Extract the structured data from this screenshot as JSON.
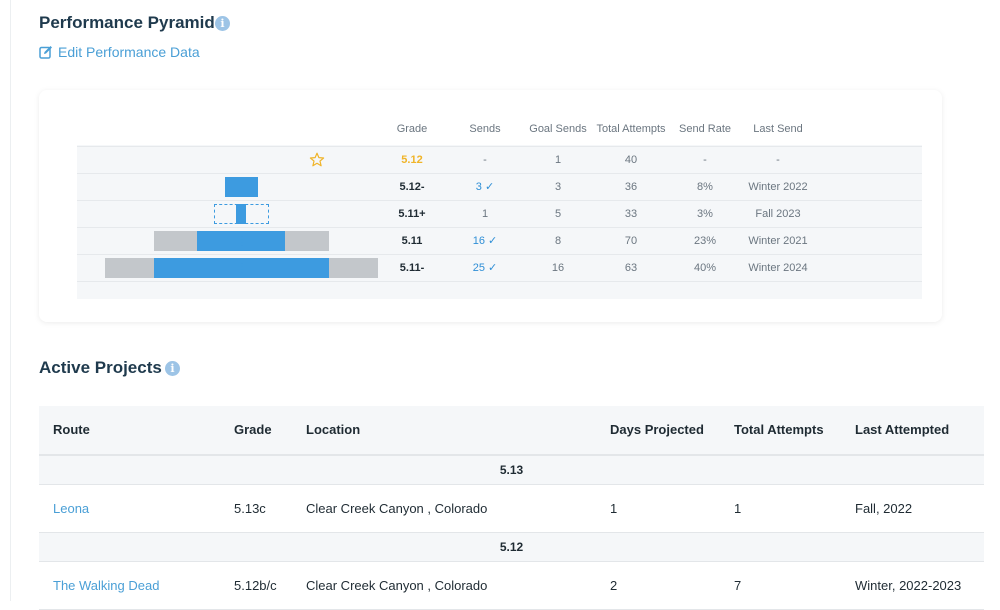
{
  "performance": {
    "title": "Performance Pyramid",
    "info_icon": "info-icon",
    "edit_label": "Edit Performance Data",
    "edit_icon": "edit-icon",
    "columns": [
      "Grade",
      "Sends",
      "Goal Sends",
      "Total Attempts",
      "Send Rate",
      "Last Send"
    ],
    "rows": [
      {
        "grade": "5.12",
        "sends": "-",
        "goal_sends": "1",
        "total_attempts": "40",
        "send_rate": "-",
        "last_send": "-",
        "sends_check": false,
        "bar_icon": "star-icon",
        "sends_value": 0,
        "goal_value": 1,
        "attempts_value": 40
      },
      {
        "grade": "5.12-",
        "sends": "3 ✓",
        "goal_sends": "3",
        "total_attempts": "36",
        "send_rate": "8%",
        "last_send": "Winter 2022",
        "sends_check": true,
        "sends_value": 3,
        "goal_value": 3,
        "attempts_value": 36
      },
      {
        "grade": "5.11+",
        "sends": "1",
        "goal_sends": "5",
        "total_attempts": "33",
        "send_rate": "3%",
        "last_send": "Fall 2023",
        "sends_check": false,
        "sends_value": 1,
        "goal_value": 5,
        "attempts_value": 33
      },
      {
        "grade": "5.11",
        "sends": "16 ✓",
        "goal_sends": "8",
        "total_attempts": "70",
        "send_rate": "23%",
        "last_send": "Winter 2021",
        "sends_check": true,
        "sends_value": 16,
        "goal_value": 8,
        "attempts_value": 70
      },
      {
        "grade": "5.11-",
        "sends": "25 ✓",
        "goal_sends": "16",
        "total_attempts": "63",
        "send_rate": "40%",
        "last_send": "Winter 2024",
        "sends_check": true,
        "sends_value": 25,
        "goal_value": 16,
        "attempts_value": 63
      }
    ],
    "colors": {
      "sends": "#3d9be0",
      "attempts": "#c3c7cb",
      "project_grade": "#f0b429"
    }
  },
  "projects": {
    "title": "Active Projects",
    "info_icon": "info-icon",
    "columns": [
      "Route",
      "Grade",
      "Location",
      "Days Projected",
      "Total Attempts",
      "Last Attempted"
    ],
    "groups": [
      {
        "label": "5.13",
        "rows": [
          {
            "route": "Leona",
            "grade": "5.13c",
            "location": "Clear Creek Canyon , Colorado",
            "days": "1",
            "attempts": "1",
            "last": "Fall, 2022"
          }
        ]
      },
      {
        "label": "5.12",
        "rows": [
          {
            "route": "The Walking Dead",
            "grade": "5.12b/c",
            "location": "Clear Creek Canyon , Colorado",
            "days": "2",
            "attempts": "7",
            "last": "Winter, 2022-2023"
          }
        ]
      }
    ]
  }
}
